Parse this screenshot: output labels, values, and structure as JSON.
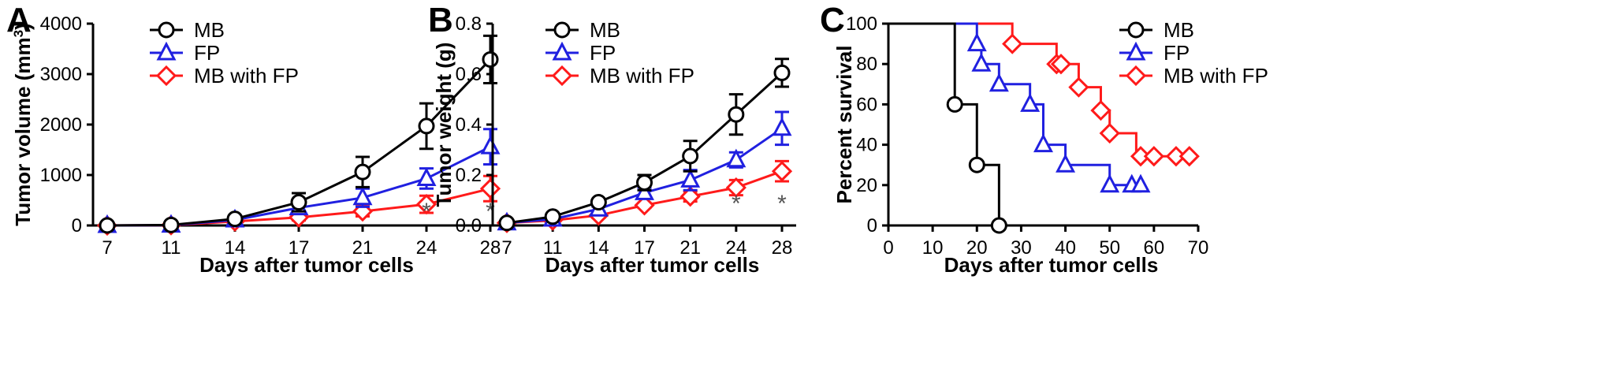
{
  "colors": {
    "MB": "#000000",
    "FP": "#2020e0",
    "MB with FP": "#ff1a1a"
  },
  "chart_data": [
    {
      "type": "line",
      "panel": "A",
      "xlabel": "Days after tumor cells",
      "ylabel": "Tumor volume (mm",
      "ylabel_sup": "3",
      "ylabel_close": ")",
      "categories": [
        "7",
        "11",
        "14",
        "17",
        "21",
        "24",
        "28"
      ],
      "ylim": [
        0,
        4000
      ],
      "yticks": [
        "0",
        "1000",
        "2000",
        "3000",
        "4000"
      ],
      "legend": "top-left",
      "series": [
        {
          "name": "MB",
          "marker": "circle",
          "values": [
            0,
            10,
            130,
            460,
            1060,
            1970,
            3290
          ],
          "errors": [
            0,
            5,
            40,
            180,
            300,
            450,
            470
          ]
        },
        {
          "name": "FP",
          "marker": "triangle",
          "values": [
            0,
            5,
            110,
            350,
            550,
            930,
            1560
          ],
          "errors": [
            0,
            5,
            30,
            120,
            180,
            200,
            350
          ]
        },
        {
          "name": "MB with FP",
          "marker": "diamond",
          "values": [
            0,
            5,
            80,
            160,
            280,
            420,
            730
          ],
          "errors": [
            0,
            5,
            20,
            60,
            100,
            170,
            250
          ]
        }
      ],
      "annotations": [
        {
          "category": "24",
          "text": "*"
        },
        {
          "category": "28",
          "text": "*"
        }
      ]
    },
    {
      "type": "line",
      "panel": "B",
      "xlabel": "Days after tumor cells",
      "ylabel": "Tumor weight (g)",
      "categories": [
        "7",
        "11",
        "14",
        "17",
        "21",
        "24",
        "28"
      ],
      "ylim": [
        0,
        0.8
      ],
      "yticks": [
        "0.0",
        "0.2",
        "0.4",
        "0.6",
        "0.8"
      ],
      "legend": "top-left",
      "series": [
        {
          "name": "MB",
          "marker": "circle",
          "values": [
            0.01,
            0.035,
            0.092,
            0.17,
            0.275,
            0.44,
            0.605
          ],
          "errors": [
            0.004,
            0.006,
            0.01,
            0.03,
            0.06,
            0.08,
            0.055
          ]
        },
        {
          "name": "FP",
          "marker": "triangle",
          "values": [
            0.01,
            0.025,
            0.065,
            0.13,
            0.18,
            0.26,
            0.385
          ],
          "errors": [
            0.004,
            0.006,
            0.01,
            0.02,
            0.04,
            0.03,
            0.065
          ]
        },
        {
          "name": "MB with FP",
          "marker": "diamond",
          "values": [
            0.01,
            0.02,
            0.04,
            0.08,
            0.115,
            0.15,
            0.215
          ],
          "errors": [
            0.004,
            0.005,
            0.01,
            0.01,
            0.02,
            0.03,
            0.04
          ]
        }
      ],
      "annotations": [
        {
          "category": "24",
          "text": "*"
        },
        {
          "category": "28",
          "text": "*"
        }
      ]
    },
    {
      "type": "line",
      "subtype": "survival-step",
      "panel": "C",
      "xlabel": "Days after tumor cells",
      "ylabel": "Percent survival",
      "xlim": [
        0,
        70
      ],
      "ylim": [
        0,
        100
      ],
      "xticks": [
        "0",
        "10",
        "20",
        "30",
        "40",
        "50",
        "60",
        "70"
      ],
      "yticks": [
        "0",
        "20",
        "40",
        "60",
        "80",
        "100"
      ],
      "legend": "top-right",
      "series": [
        {
          "name": "MB",
          "marker": "circle",
          "points": [
            [
              0,
              100
            ],
            [
              15,
              100
            ],
            [
              15,
              60
            ],
            [
              20,
              60
            ],
            [
              20,
              30
            ],
            [
              25,
              30
            ],
            [
              25,
              0
            ]
          ],
          "markers": [
            [
              15,
              60
            ],
            [
              20,
              30
            ],
            [
              25,
              0
            ]
          ]
        },
        {
          "name": "FP",
          "marker": "triangle",
          "points": [
            [
              0,
              100
            ],
            [
              20,
              100
            ],
            [
              20,
              90
            ],
            [
              21,
              90
            ],
            [
              21,
              80
            ],
            [
              25,
              80
            ],
            [
              25,
              70
            ],
            [
              32,
              70
            ],
            [
              32,
              60
            ],
            [
              35,
              60
            ],
            [
              35,
              40
            ],
            [
              40,
              40
            ],
            [
              40,
              30
            ],
            [
              50,
              30
            ],
            [
              50,
              20
            ],
            [
              57,
              20
            ]
          ],
          "markers": [
            [
              20,
              90
            ],
            [
              21,
              80
            ],
            [
              25,
              70
            ],
            [
              32,
              60
            ],
            [
              35,
              40
            ],
            [
              40,
              30
            ],
            [
              50,
              20
            ],
            [
              55,
              20
            ],
            [
              57,
              20
            ]
          ]
        },
        {
          "name": "MB with FP",
          "marker": "diamond",
          "points": [
            [
              0,
              100
            ],
            [
              28,
              100
            ],
            [
              28,
              90
            ],
            [
              38,
              90
            ],
            [
              38,
              80
            ],
            [
              43,
              80
            ],
            [
              43,
              68.5
            ],
            [
              48,
              68.5
            ],
            [
              48,
              57
            ],
            [
              50,
              57
            ],
            [
              50,
              45.7
            ],
            [
              56,
              45.7
            ],
            [
              56,
              34.3
            ],
            [
              68,
              34.3
            ]
          ],
          "markers": [
            [
              28,
              90
            ],
            [
              38,
              80
            ],
            [
              39,
              80
            ],
            [
              43,
              68.5
            ],
            [
              48,
              57
            ],
            [
              50,
              45.7
            ],
            [
              57,
              34.3
            ],
            [
              60,
              34.3
            ],
            [
              65,
              34.3
            ],
            [
              68,
              34.3
            ]
          ]
        }
      ]
    }
  ]
}
